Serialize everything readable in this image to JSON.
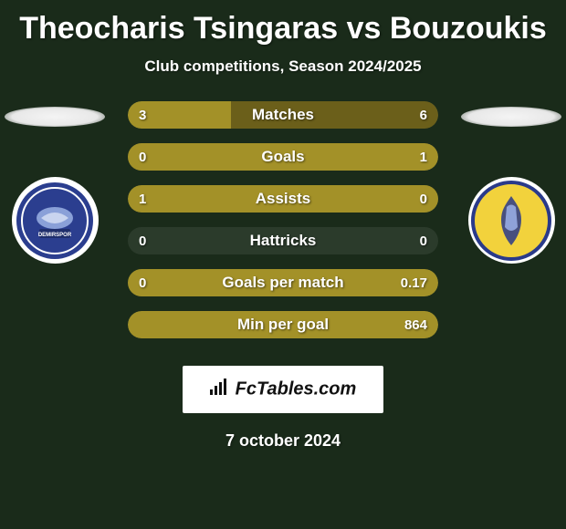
{
  "title": "Theocharis Tsingaras vs Bouzoukis",
  "subtitle": "Club competitions, Season 2024/2025",
  "date": "7 october 2024",
  "footer_brand": "FcTables.com",
  "colors": {
    "background": "#1a2b1a",
    "bar_bg": "rgba(255,255,255,0.08)",
    "fill_primary": "#a39128",
    "fill_secondary": "#6b5f1a",
    "text": "#ffffff"
  },
  "left_club": {
    "name": "Adana Demirspor",
    "badge_bg": "#2b3e8f",
    "badge_accent": "#ffffff"
  },
  "right_club": {
    "name": "Panaitolikos",
    "badge_bg": "#f2d23c",
    "badge_accent": "#2a3a8a"
  },
  "bars": [
    {
      "label": "Matches",
      "left_value": "3",
      "right_value": "6",
      "left_pct": 33.3,
      "right_pct": 66.7,
      "full_fill": false
    },
    {
      "label": "Goals",
      "left_value": "0",
      "right_value": "1",
      "left_pct": 0,
      "right_pct": 100,
      "full_fill": false
    },
    {
      "label": "Assists",
      "left_value": "1",
      "right_value": "0",
      "left_pct": 100,
      "right_pct": 0,
      "full_fill": false
    },
    {
      "label": "Hattricks",
      "left_value": "0",
      "right_value": "0",
      "left_pct": 0,
      "right_pct": 0,
      "full_fill": false
    },
    {
      "label": "Goals per match",
      "left_value": "0",
      "right_value": "0.17",
      "left_pct": 0,
      "right_pct": 100,
      "full_fill": false
    },
    {
      "label": "Min per goal",
      "left_value": "",
      "right_value": "864",
      "left_pct": 0,
      "right_pct": 100,
      "full_fill": true
    }
  ]
}
